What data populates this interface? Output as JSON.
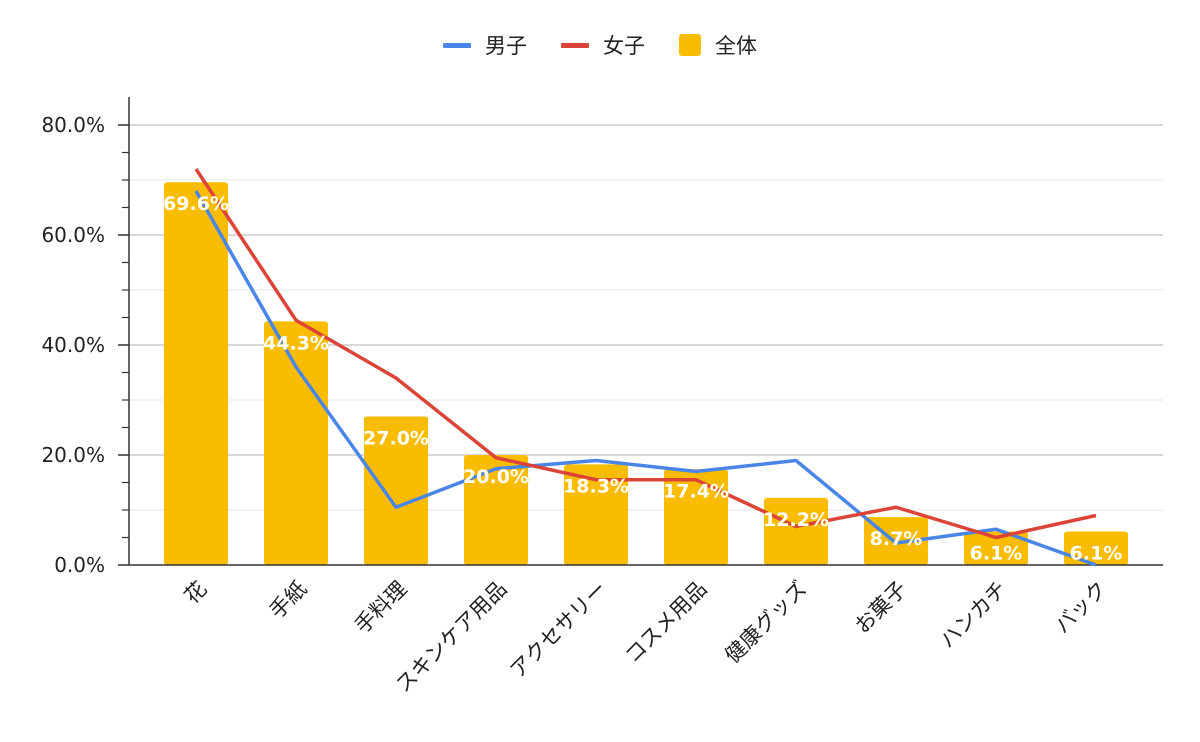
{
  "legend": {
    "items": [
      {
        "label": "男子",
        "color": "#4a86e8",
        "kind": "line"
      },
      {
        "label": "女子",
        "color": "#db4437",
        "kind": "line"
      },
      {
        "label": "全体",
        "color": "#f9bc00",
        "kind": "box"
      }
    ]
  },
  "chart_data": {
    "type": "bar",
    "categories": [
      "花",
      "手紙",
      "手料理",
      "スキンケア用品",
      "アクセサリー",
      "コスメ用品",
      "健康グッズ",
      "お菓子",
      "ハンカチ",
      "バック"
    ],
    "series": [
      {
        "name": "全体",
        "kind": "bar",
        "color": "#f9bc00",
        "values": [
          69.6,
          44.3,
          27.0,
          20.0,
          18.3,
          17.4,
          12.2,
          8.7,
          6.1,
          6.1
        ],
        "labels": [
          "69.6%",
          "44.3%",
          "27.0%",
          "20.0%",
          "18.3%",
          "17.4%",
          "12.2%",
          "8.7%",
          "6.1%",
          "6.1%"
        ]
      },
      {
        "name": "男子",
        "kind": "line",
        "color": "#4a86e8",
        "values": [
          68.0,
          36.0,
          10.5,
          17.5,
          19.0,
          17.0,
          19.0,
          4.0,
          6.5,
          0.0
        ]
      },
      {
        "name": "女子",
        "kind": "line",
        "color": "#db4437",
        "values": [
          72.0,
          44.5,
          34.0,
          19.5,
          15.5,
          15.5,
          7.0,
          10.5,
          5.0,
          9.0
        ]
      }
    ],
    "yticks": [
      "0.0%",
      "20.0%",
      "40.0%",
      "60.0%",
      "80.0%"
    ],
    "ylim": [
      0,
      80
    ],
    "grid": true,
    "legend_position": "top"
  }
}
